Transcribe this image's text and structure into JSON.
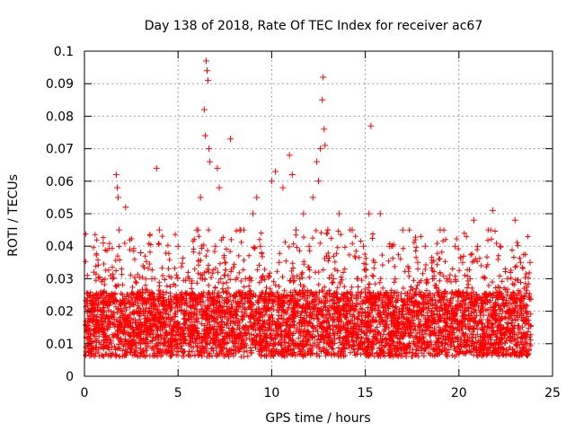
{
  "chart_data": {
    "type": "scatter",
    "title": "Day 138 of 2018, Rate Of TEC Index for receiver ac67",
    "xlabel": "GPS time / hours",
    "ylabel": "ROTI / TECUs",
    "xlim": [
      0,
      25
    ],
    "ylim": [
      0,
      0.1
    ],
    "xticks": [
      0,
      5,
      10,
      15,
      20,
      25
    ],
    "xtick_labels": [
      "0",
      "5",
      "10",
      "15",
      "20",
      "25"
    ],
    "yticks": [
      0,
      0.01,
      0.02,
      0.03,
      0.04,
      0.05,
      0.06,
      0.07,
      0.08,
      0.09,
      0.1
    ],
    "ytick_labels": [
      "0",
      "0.01",
      "0.02",
      "0.03",
      "0.04",
      "0.05",
      "0.06",
      "0.07",
      "0.08",
      "0.09",
      "0.1"
    ],
    "grid": true,
    "marker": "+",
    "color": "#ff0000",
    "series": [
      {
        "name": "ROTI",
        "x": [
          0.1,
          0.3,
          0.5,
          0.8,
          1.0,
          1.3,
          1.5,
          1.7,
          1.75,
          1.8,
          1.85,
          2.0,
          2.2,
          2.5,
          2.8,
          3.0,
          3.3,
          3.6,
          3.85,
          4.0,
          4.3,
          4.6,
          5.0,
          5.3,
          5.6,
          6.0,
          6.2,
          6.3,
          6.4,
          6.45,
          6.5,
          6.55,
          6.6,
          6.65,
          6.7,
          6.9,
          7.0,
          7.1,
          7.2,
          7.5,
          7.8,
          8.0,
          8.3,
          8.6,
          9.0,
          9.2,
          9.4,
          9.7,
          10.0,
          10.2,
          10.4,
          10.6,
          10.8,
          10.95,
          11.1,
          11.3,
          11.5,
          11.7,
          12.0,
          12.2,
          12.4,
          12.5,
          12.6,
          12.7,
          12.75,
          12.8,
          12.85,
          13.0,
          13.3,
          13.6,
          14.0,
          14.3,
          14.6,
          14.9,
          15.2,
          15.3,
          15.5,
          15.8,
          16.0,
          16.3,
          16.6,
          17.0,
          17.4,
          17.8,
          18.2,
          18.6,
          19.0,
          19.4,
          19.8,
          20.2,
          20.6,
          20.8,
          21.0,
          21.4,
          21.8,
          22.2,
          22.6,
          23.0,
          23.3,
          23.6,
          23.8
        ],
        "y": [
          0.012,
          0.02,
          0.032,
          0.015,
          0.041,
          0.018,
          0.03,
          0.062,
          0.058,
          0.055,
          0.045,
          0.02,
          0.052,
          0.025,
          0.015,
          0.038,
          0.021,
          0.03,
          0.064,
          0.045,
          0.022,
          0.018,
          0.04,
          0.024,
          0.03,
          0.045,
          0.055,
          0.03,
          0.082,
          0.074,
          0.097,
          0.094,
          0.091,
          0.07,
          0.066,
          0.02,
          0.04,
          0.064,
          0.058,
          0.035,
          0.073,
          0.025,
          0.045,
          0.03,
          0.05,
          0.055,
          0.04,
          0.02,
          0.06,
          0.063,
          0.035,
          0.058,
          0.025,
          0.068,
          0.062,
          0.045,
          0.03,
          0.05,
          0.04,
          0.055,
          0.066,
          0.06,
          0.07,
          0.085,
          0.092,
          0.076,
          0.071,
          0.045,
          0.03,
          0.05,
          0.02,
          0.045,
          0.03,
          0.04,
          0.05,
          0.077,
          0.035,
          0.05,
          0.025,
          0.04,
          0.03,
          0.045,
          0.02,
          0.035,
          0.04,
          0.03,
          0.045,
          0.02,
          0.04,
          0.035,
          0.03,
          0.048,
          0.04,
          0.025,
          0.051,
          0.04,
          0.03,
          0.048,
          0.035,
          0.02,
          0.035
        ]
      }
    ]
  }
}
